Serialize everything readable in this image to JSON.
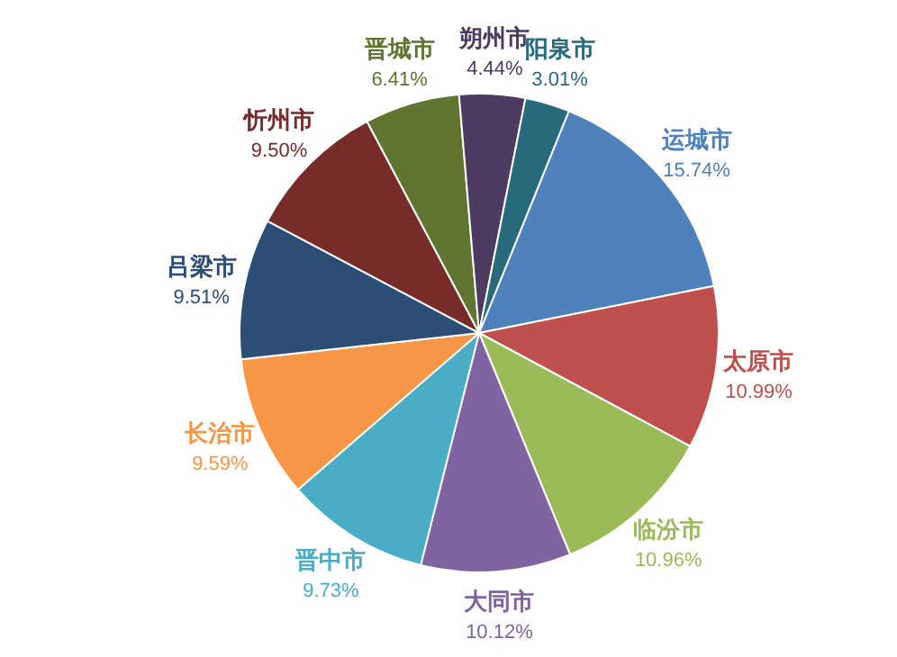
{
  "chart_data": {
    "type": "pie",
    "categories": [
      "运城市",
      "太原市",
      "临汾市",
      "大同市",
      "晋中市",
      "长治市",
      "吕梁市",
      "忻州市",
      "晋城市",
      "朔州市",
      "阳泉市"
    ],
    "values": [
      15.74,
      10.99,
      10.96,
      10.12,
      9.73,
      9.59,
      9.51,
      9.5,
      6.41,
      4.44,
      3.01
    ],
    "value_labels": [
      "15.74%",
      "10.99%",
      "10.96%",
      "10.12%",
      "9.73%",
      "9.59%",
      "9.51%",
      "9.50%",
      "6.41%",
      "4.44%",
      "3.01%"
    ],
    "colors": [
      "#4f81bd",
      "#c0504d",
      "#9bbb59",
      "#8064a2",
      "#4bacc6",
      "#f79646",
      "#2c4d75",
      "#772c2a",
      "#5f7530",
      "#4d3b62",
      "#276a7c"
    ]
  }
}
